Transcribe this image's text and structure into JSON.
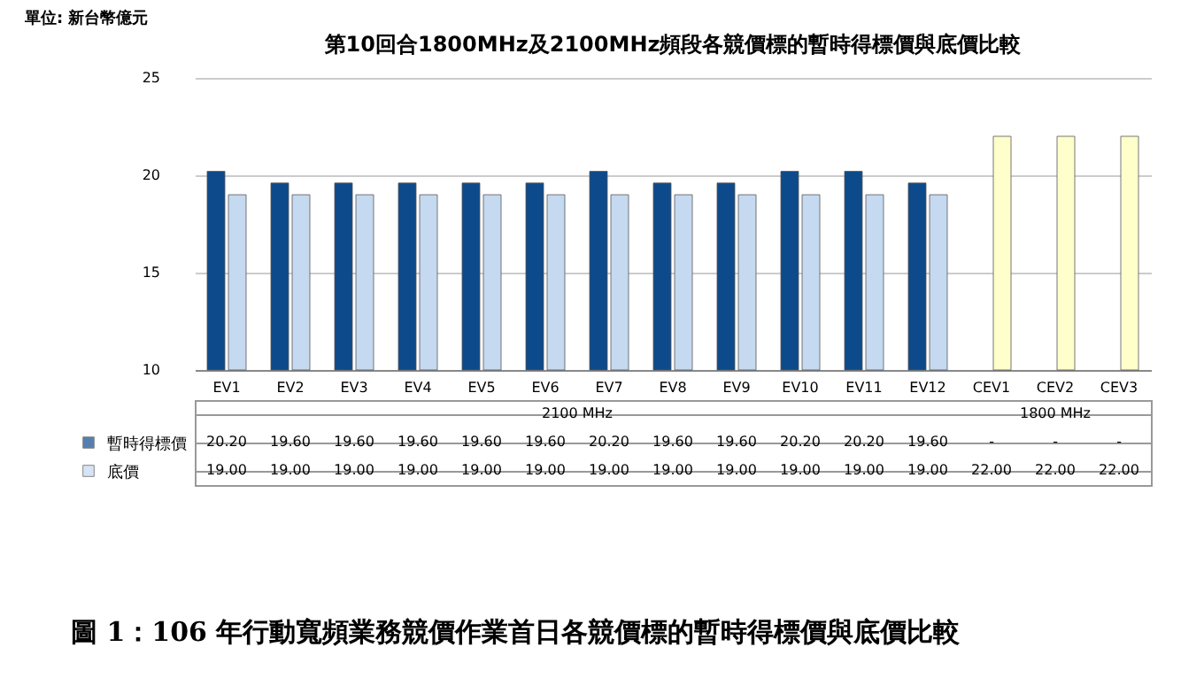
{
  "chart_data": {
    "type": "bar",
    "title": "第10回合1800MHz及2100MHz頻段各競價標的暫時得標價與底價比較",
    "categories": [
      "EV1",
      "EV2",
      "EV3",
      "EV4",
      "EV5",
      "EV6",
      "EV7",
      "EV8",
      "EV9",
      "EV10",
      "EV11",
      "EV12",
      "CEV1",
      "CEV2",
      "CEV3"
    ],
    "series": [
      {
        "name": "暫時得標價",
        "color": "#0d4a8c",
        "values": [
          20.2,
          19.6,
          19.6,
          19.6,
          19.6,
          19.6,
          20.2,
          19.6,
          19.6,
          20.2,
          20.2,
          19.6,
          null,
          null,
          null
        ],
        "value_labels": [
          "20.20",
          "19.60",
          "19.60",
          "19.60",
          "19.60",
          "19.60",
          "20.20",
          "19.60",
          "19.60",
          "20.20",
          "20.20",
          "19.60",
          "-",
          "-",
          "-"
        ]
      },
      {
        "name": "底價",
        "color": "#c5d9f1",
        "colors": [
          "#c5d9f1",
          "#c5d9f1",
          "#c5d9f1",
          "#c5d9f1",
          "#c5d9f1",
          "#c5d9f1",
          "#c5d9f1",
          "#c5d9f1",
          "#c5d9f1",
          "#c5d9f1",
          "#c5d9f1",
          "#c5d9f1",
          "#ffffcc",
          "#ffffcc",
          "#ffffcc"
        ],
        "values": [
          19,
          19,
          19,
          19,
          19,
          19,
          19,
          19,
          19,
          19,
          19,
          19,
          22,
          22,
          22
        ],
        "value_labels": [
          "19.00",
          "19.00",
          "19.00",
          "19.00",
          "19.00",
          "19.00",
          "19.00",
          "19.00",
          "19.00",
          "19.00",
          "19.00",
          "19.00",
          "22.00",
          "22.00",
          "22.00"
        ]
      }
    ],
    "legend": "bottom left",
    "ylim": [
      10,
      25
    ],
    "yticks": [
      10,
      15,
      20,
      25
    ],
    "grid": "y",
    "annotations": [
      "單位: 新台幣億元",
      "2100 MHz",
      "1800 MHz",
      "圖 1：106 年行動寬頻業務競價作業首日各競價標的暫時得標價與底價比較"
    ]
  }
}
